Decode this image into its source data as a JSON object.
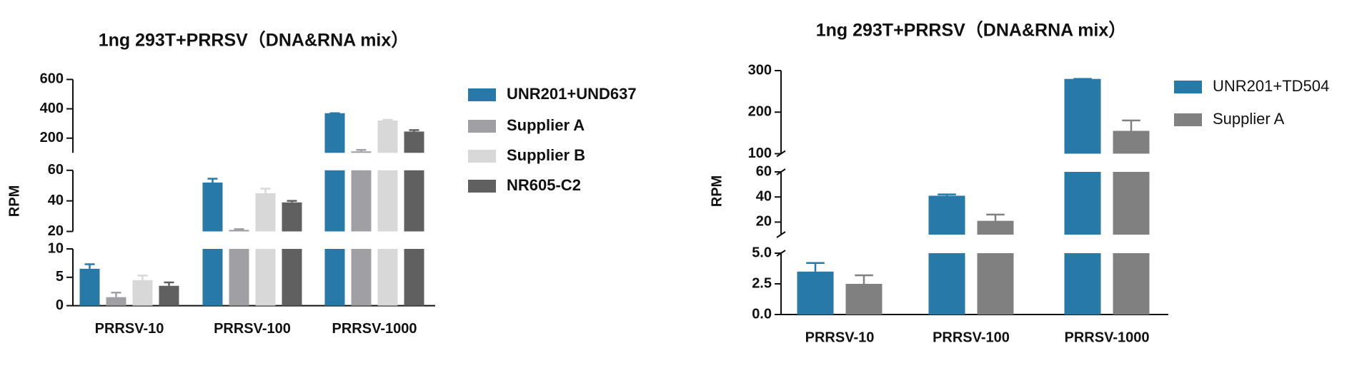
{
  "chart_data": [
    {
      "type": "bar",
      "title": "1ng 293T+PRRSV（DNA&RNA mix）",
      "ylabel": "RPM",
      "categories": [
        "PRRSV-10",
        "PRRSV-100",
        "PRRSV-1000"
      ],
      "series": [
        {
          "name": "UNR201+UND637",
          "color": "#2779a7",
          "values": [
            6.5,
            52,
            370
          ],
          "errors": [
            0.8,
            2.5,
            0
          ]
        },
        {
          "name": "Supplier A",
          "color": "#a0a0a4",
          "values": [
            1.5,
            21,
            110
          ],
          "errors": [
            0.8,
            0.5,
            10
          ]
        },
        {
          "name": "Supplier B",
          "color": "#d8d8d8",
          "values": [
            4.5,
            45,
            320
          ],
          "errors": [
            0.8,
            3,
            5
          ]
        },
        {
          "name": "NR605-C2",
          "color": "#606060",
          "values": [
            3.5,
            39,
            245
          ],
          "errors": [
            0.6,
            1,
            10
          ]
        }
      ],
      "y_segments": [
        {
          "ylim": [
            0,
            10
          ],
          "yticks": [
            0,
            5,
            10
          ]
        },
        {
          "ylim": [
            20,
            60
          ],
          "yticks": [
            20,
            40,
            60
          ]
        },
        {
          "ylim": [
            100,
            600
          ],
          "yticks": [
            200,
            400,
            600
          ]
        }
      ]
    },
    {
      "type": "bar",
      "title": "1ng 293T+PRRSV（DNA&RNA mix）",
      "ylabel": "RPM",
      "categories": [
        "PRRSV-10",
        "PRRSV-100",
        "PRRSV-1000"
      ],
      "series": [
        {
          "name": "UNR201+TD504",
          "color": "#2779a7",
          "values": [
            3.5,
            41,
            280
          ],
          "errors": [
            0.7,
            1,
            0
          ]
        },
        {
          "name": "Supplier A",
          "color": "#808080",
          "values": [
            2.5,
            21,
            155
          ],
          "errors": [
            0.7,
            5,
            25
          ]
        }
      ],
      "y_segments": [
        {
          "ylim": [
            0,
            5
          ],
          "yticks": [
            {
              "value": 0,
              "label": "0.0"
            },
            2.5,
            {
              "value": 5,
              "label": "5.0"
            }
          ]
        },
        {
          "ylim": [
            10,
            60
          ],
          "yticks": [
            20,
            40,
            60
          ]
        },
        {
          "ylim": [
            100,
            300
          ],
          "yticks": [
            100,
            200,
            300
          ]
        }
      ]
    }
  ]
}
